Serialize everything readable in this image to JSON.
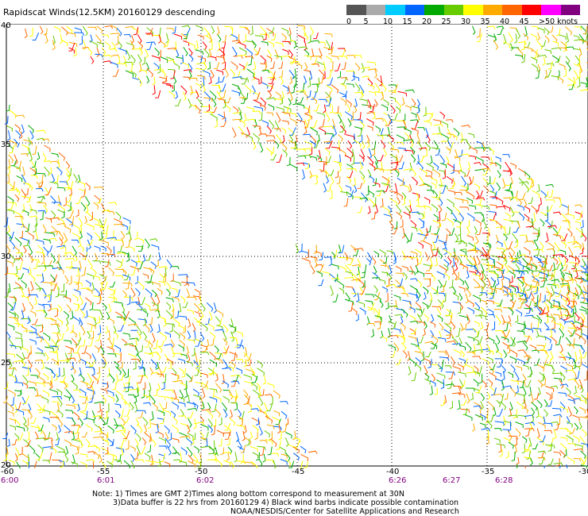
{
  "title": "Rapidscat Winds(12.5KM) 20160129 descending",
  "legend": {
    "labels": [
      "0",
      "5",
      "10",
      "15",
      "20",
      "25",
      "30",
      "35",
      "40",
      "45",
      ">50 knots"
    ],
    "colors": [
      "#555555",
      "#aaaaaa",
      "#00ccff",
      "#0066ff",
      "#00aa00",
      "#66cc00",
      "#ffff00",
      "#ffaa00",
      "#ff6600",
      "#ff0000",
      "#ff00ff",
      "#800080"
    ]
  },
  "map": {
    "lat_labels": [
      "40",
      "35",
      "30",
      "25",
      "20"
    ],
    "lon_labels": [
      "-60",
      "-55",
      "-50",
      "-45",
      "-40",
      "-35",
      "-30"
    ],
    "time_labels": [
      "6:00",
      "6:01",
      "6:02",
      "6:26",
      "6:27",
      "6:28"
    ]
  },
  "notes": {
    "line1": "Note: 1) Times are GMT 2)Times along bottom correspond to measurement at 30N",
    "line2": "3)Data buffer is 22 hrs from 20160129 4) Black wind barbs indicate possible contamination",
    "line3": "NOAA/NESDIS/Center for Satellite Applications and Research"
  }
}
